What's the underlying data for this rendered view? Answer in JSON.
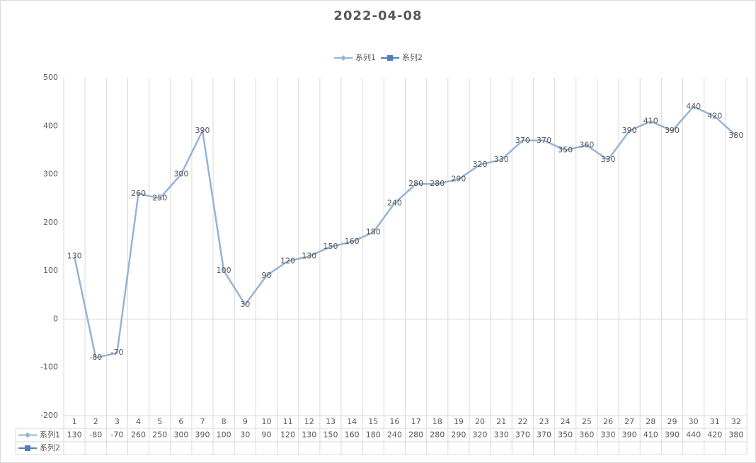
{
  "chart_data": {
    "type": "line",
    "title": "2022-04-08",
    "categories": [
      "1",
      "2",
      "3",
      "4",
      "5",
      "6",
      "7",
      "8",
      "9",
      "10",
      "11",
      "12",
      "13",
      "14",
      "15",
      "16",
      "17",
      "18",
      "19",
      "20",
      "21",
      "22",
      "23",
      "24",
      "25",
      "26",
      "27",
      "28",
      "29",
      "30",
      "31",
      "32"
    ],
    "series": [
      {
        "name": "系列1",
        "color": "#95b3d7",
        "values": [
          130,
          -80,
          -70,
          260,
          250,
          300,
          390,
          100,
          30,
          90,
          120,
          130,
          150,
          160,
          180,
          240,
          280,
          280,
          290,
          320,
          330,
          370,
          370,
          350,
          360,
          330,
          390,
          410,
          390,
          440,
          420,
          380
        ]
      },
      {
        "name": "系列2",
        "color": "#4f81bd",
        "values": [
          null,
          null,
          null,
          null,
          null,
          null,
          null,
          null,
          null,
          null,
          null,
          null,
          null,
          null,
          null,
          null,
          null,
          null,
          null,
          null,
          null,
          null,
          null,
          null,
          null,
          null,
          null,
          null,
          null,
          null,
          null,
          null
        ]
      }
    ],
    "ylim": [
      -200,
      500
    ],
    "yticks": [
      -200,
      -100,
      0,
      100,
      200,
      300,
      400,
      500
    ],
    "legend": "top",
    "data_table": true
  }
}
